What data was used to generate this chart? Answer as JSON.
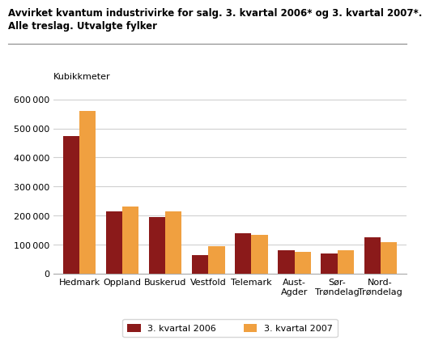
{
  "title_line1": "Avvirket kvantum industrivirke for salg. 3. kvartal 2006* og 3. kvartal 2007*.",
  "title_line2": "Alle treslag. Utvalgte fylker",
  "ylabel": "Kubikkmeter",
  "categories": [
    "Hedmark",
    "Oppland",
    "Buskerud",
    "Vestfold",
    "Telemark",
    "Aust-\nAgder",
    "Sør-\nTrøndelag",
    "Nord-\nTrøndelag"
  ],
  "values_2006": [
    475000,
    215000,
    195000,
    65000,
    140000,
    80000,
    70000,
    125000
  ],
  "values_2007": [
    560000,
    230000,
    215000,
    95000,
    135000,
    75000,
    80000,
    110000
  ],
  "color_2006": "#8B1A1A",
  "color_2007": "#F0A040",
  "legend_2006": "3. kvartal 2006",
  "legend_2007": "3. kvartal 2007",
  "ylim": [
    0,
    640000
  ],
  "yticks": [
    0,
    100000,
    200000,
    300000,
    400000,
    500000,
    600000
  ],
  "background_color": "#ffffff",
  "grid_color": "#d0d0d0",
  "bar_width": 0.38
}
